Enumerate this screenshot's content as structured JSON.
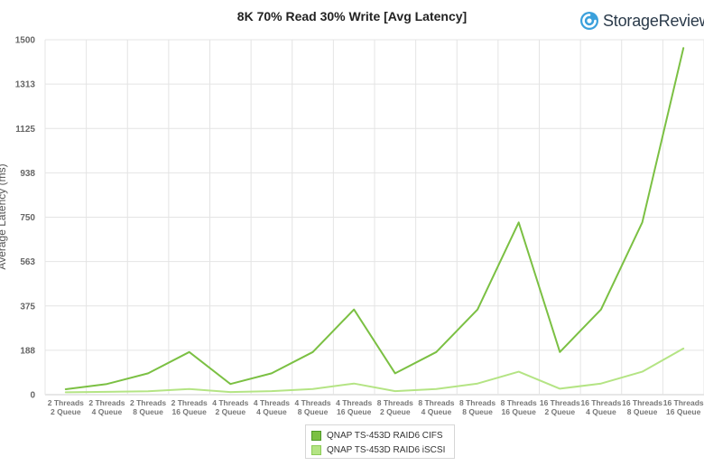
{
  "chart_data": {
    "type": "line",
    "title": "8K 70% Read 30% Write [Avg Latency]",
    "ylabel": "Average Latency (ms)",
    "xlabel": "",
    "ylim": [
      0,
      1500
    ],
    "yticks": [
      "0",
      "188",
      "375",
      "563",
      "750",
      "938",
      "1125",
      "1313",
      "1500"
    ],
    "grid": true,
    "legend_position": "bottom",
    "categories": [
      [
        "2 Threads",
        "2 Queue"
      ],
      [
        "2 Threads",
        "4 Queue"
      ],
      [
        "2 Threads",
        "8 Queue"
      ],
      [
        "2 Threads",
        "16 Queue"
      ],
      [
        "4 Threads",
        "2 Queue"
      ],
      [
        "4 Threads",
        "4 Queue"
      ],
      [
        "4 Threads",
        "8 Queue"
      ],
      [
        "4 Threads",
        "16 Queue"
      ],
      [
        "8 Threads",
        "2 Queue"
      ],
      [
        "8 Threads",
        "4 Queue"
      ],
      [
        "8 Threads",
        "8 Queue"
      ],
      [
        "8 Threads",
        "16 Queue"
      ],
      [
        "16 Threads",
        "2 Queue"
      ],
      [
        "16 Threads",
        "4 Queue"
      ],
      [
        "16 Threads",
        "8 Queue"
      ],
      [
        "16 Threads",
        "16 Queue"
      ]
    ],
    "series": [
      {
        "name": "QNAP TS-453D RAID6 CIFS",
        "color": "#7bc043",
        "swatch_border": "#4f9a28",
        "values": [
          23,
          45,
          90,
          180,
          45,
          90,
          180,
          360,
          90,
          180,
          360,
          728,
          180,
          360,
          728,
          1465
        ]
      },
      {
        "name": "QNAP TS-453D RAID6 iSCSI",
        "color": "#b4e484",
        "swatch_border": "#8ccc55",
        "values": [
          10,
          12,
          14,
          24,
          11,
          15,
          24,
          47,
          15,
          24,
          47,
          97,
          25,
          47,
          97,
          195
        ]
      }
    ]
  },
  "brand": {
    "name": "StorageReview",
    "icon": "storagereview-logo-icon",
    "icon_color": "#3aa0dc"
  }
}
